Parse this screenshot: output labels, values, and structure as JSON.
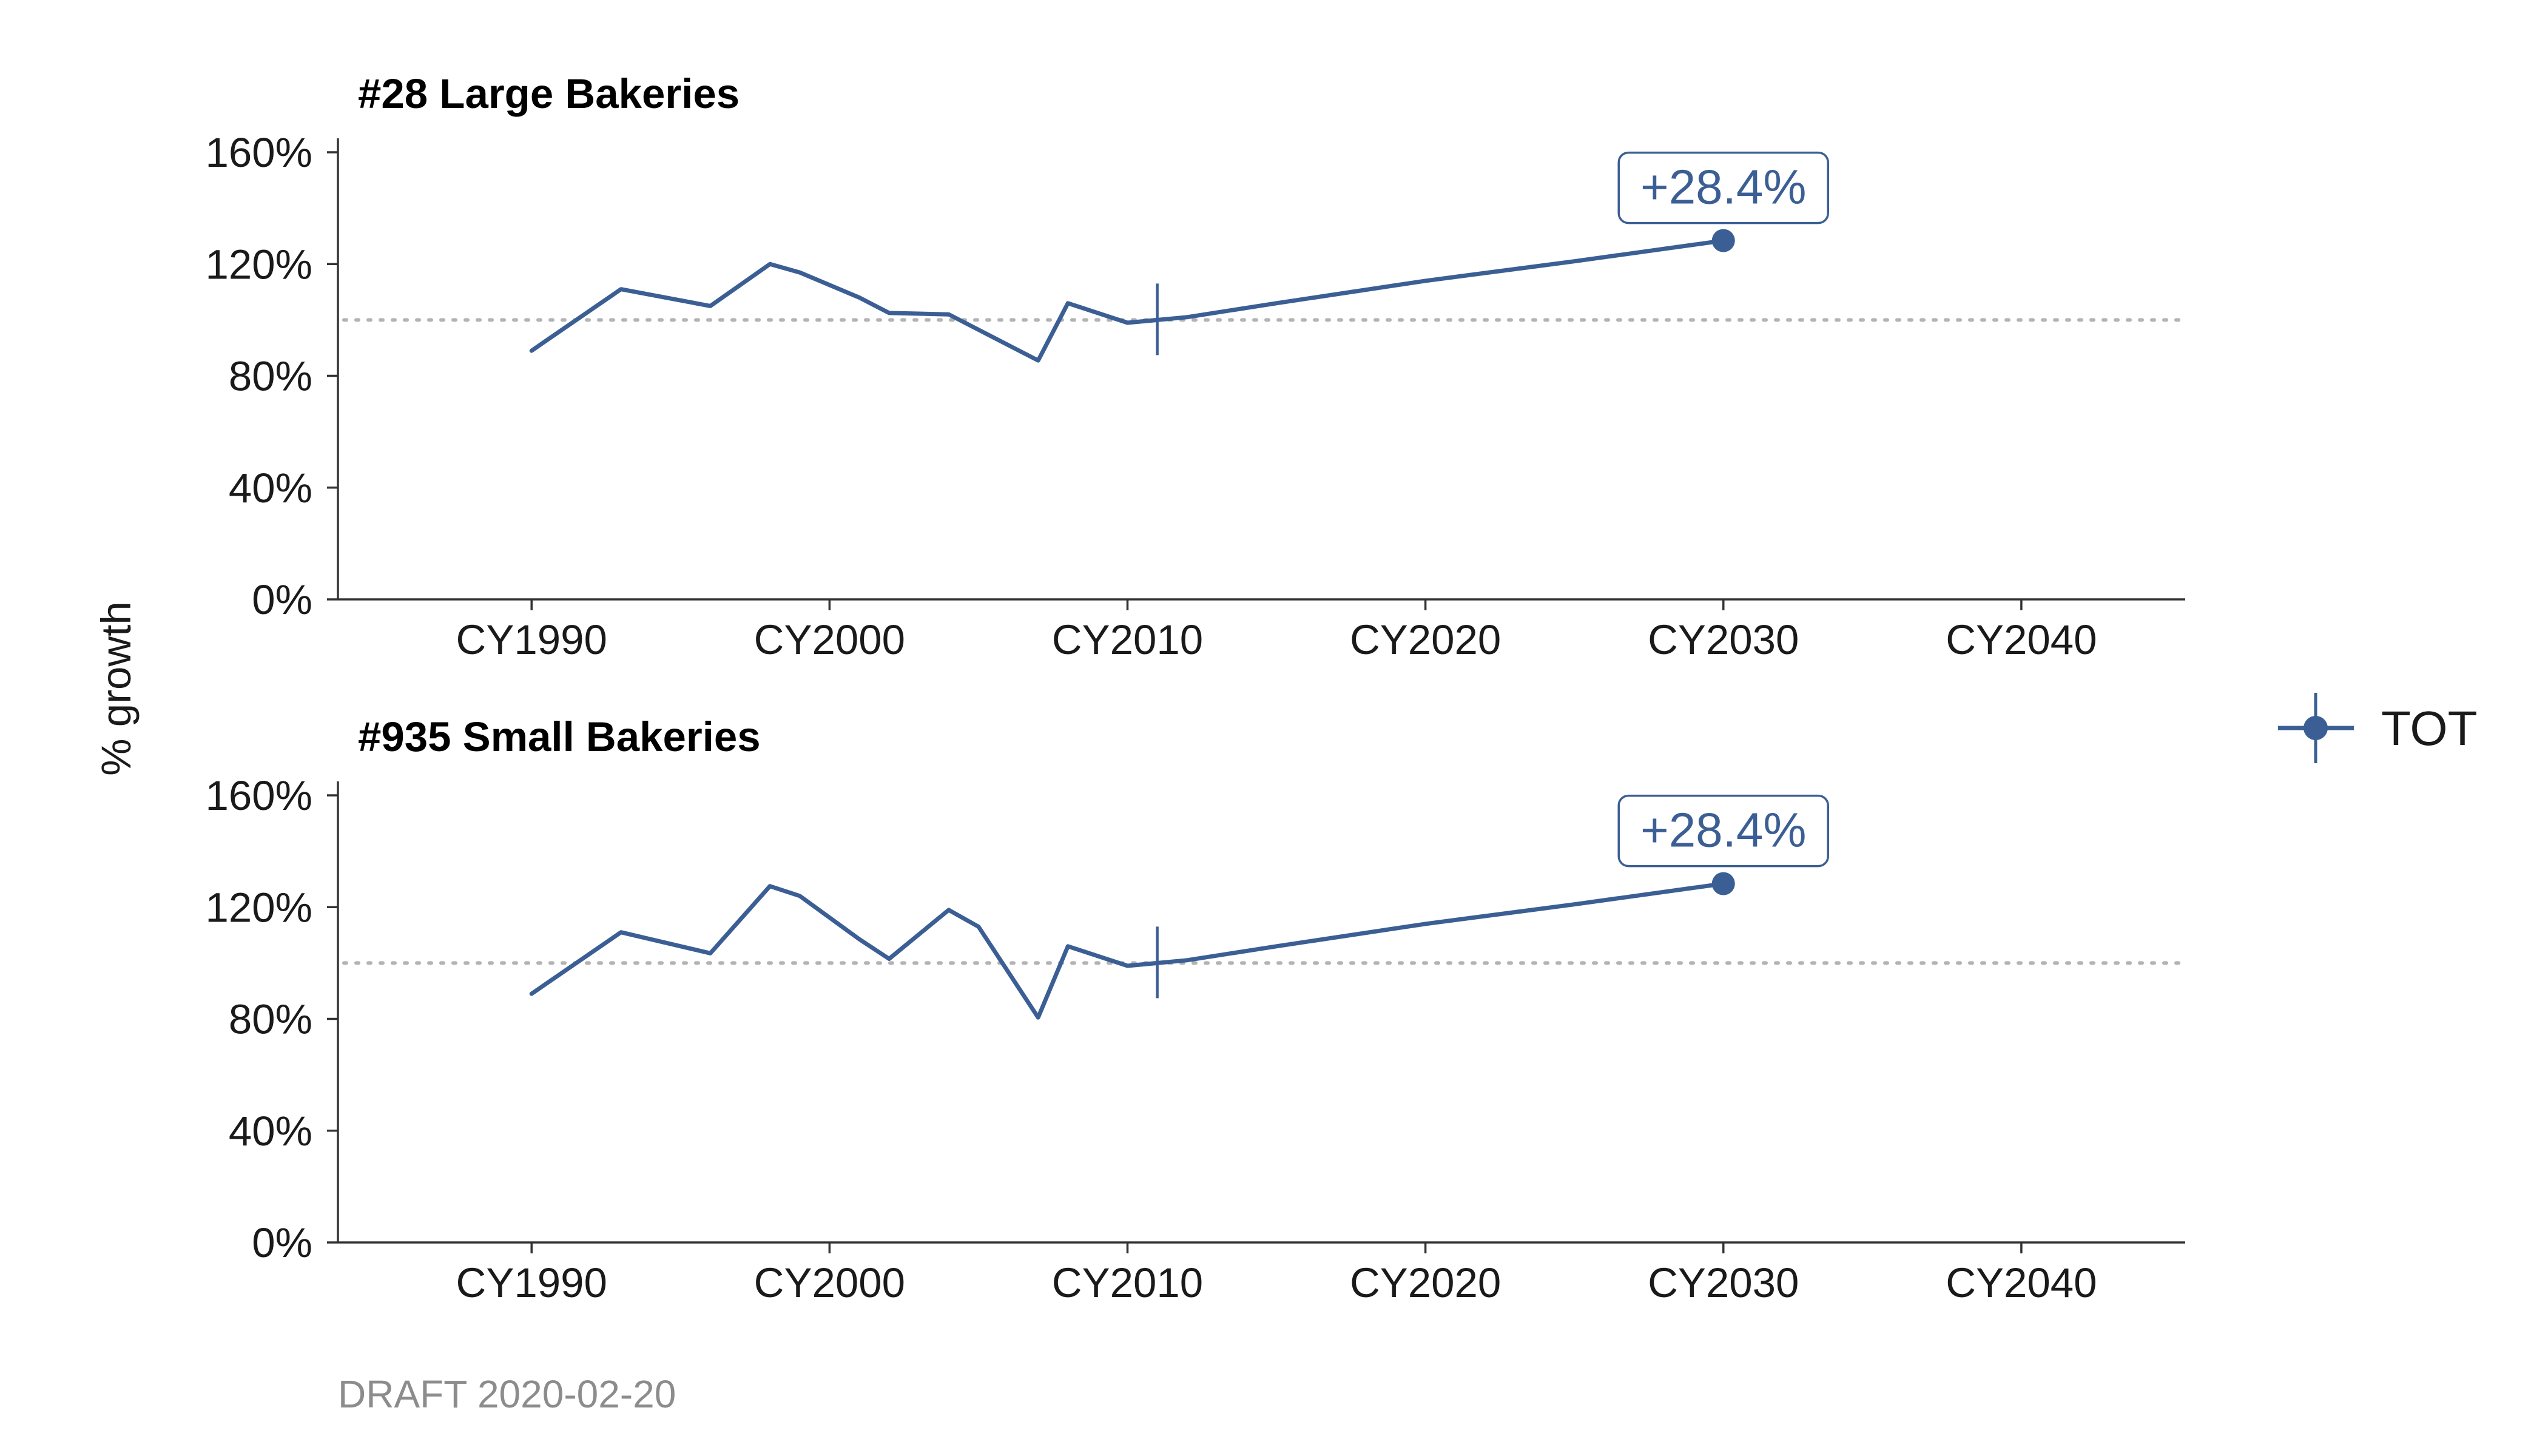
{
  "colors": {
    "series": "#3B5F94",
    "reference": "#b3b3b3",
    "axis": "#333333",
    "note": "#8c8c8c"
  },
  "ylabel": "% growth",
  "draft_note": "DRAFT 2020-02-20",
  "legend": {
    "label": "TOT",
    "position": "right"
  },
  "chart_data": [
    {
      "type": "line",
      "title": "#28 Large Bakeries",
      "xlabel": "",
      "ylabel": "% growth",
      "x_ticks": [
        "CY1990",
        "CY2000",
        "CY2010",
        "CY2020",
        "CY2030",
        "CY2040"
      ],
      "x_tick_values": [
        1990,
        2000,
        2010,
        2020,
        2030,
        2040
      ],
      "y_ticks": [
        "0%",
        "40%",
        "80%",
        "120%",
        "160%"
      ],
      "y_tick_values": [
        0,
        40,
        80,
        120,
        160
      ],
      "xlim": [
        1983.5,
        2045.5
      ],
      "ylim": [
        0,
        165
      ],
      "reference_line": 100,
      "grid": false,
      "series": [
        {
          "name": "TOT",
          "x": [
            1990,
            1993,
            1996,
            1998,
            1999,
            2001,
            2002,
            2004,
            2007,
            2008,
            2010,
            2012,
            2015,
            2020,
            2025,
            2030
          ],
          "y": [
            89,
            111,
            105,
            120,
            117,
            108,
            102.5,
            102,
            85.5,
            106,
            99,
            101,
            106,
            114,
            121,
            128.4
          ]
        }
      ],
      "marker": {
        "x": 2011,
        "y": 100
      },
      "end_point": {
        "x": 2030,
        "y": 128.4
      },
      "annotation": "+28.4%"
    },
    {
      "type": "line",
      "title": "#935 Small Bakeries",
      "xlabel": "",
      "ylabel": "% growth",
      "x_ticks": [
        "CY1990",
        "CY2000",
        "CY2010",
        "CY2020",
        "CY2030",
        "CY2040"
      ],
      "x_tick_values": [
        1990,
        2000,
        2010,
        2020,
        2030,
        2040
      ],
      "y_ticks": [
        "0%",
        "40%",
        "80%",
        "120%",
        "160%"
      ],
      "y_tick_values": [
        0,
        40,
        80,
        120,
        160
      ],
      "xlim": [
        1983.5,
        2045.5
      ],
      "ylim": [
        0,
        165
      ],
      "reference_line": 100,
      "grid": false,
      "series": [
        {
          "name": "TOT",
          "x": [
            1990,
            1993,
            1996,
            1998,
            1999,
            2001,
            2002,
            2004,
            2005,
            2007,
            2008,
            2010,
            2012,
            2015,
            2020,
            2025,
            2030
          ],
          "y": [
            89,
            111,
            103.5,
            127.5,
            124,
            108.5,
            101.5,
            119,
            113,
            80.5,
            106,
            99,
            101,
            106,
            114,
            121,
            128.4
          ]
        }
      ],
      "marker": {
        "x": 2011,
        "y": 100
      },
      "end_point": {
        "x": 2030,
        "y": 128.4
      },
      "annotation": "+28.4%"
    }
  ]
}
